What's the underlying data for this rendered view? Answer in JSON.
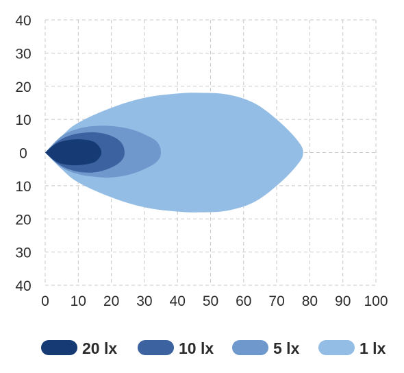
{
  "chart_data": {
    "type": "area",
    "title": "",
    "xlabel": "",
    "ylabel": "",
    "xlim": [
      0,
      100
    ],
    "ylim": [
      -40,
      40
    ],
    "x_ticks": [
      "0",
      "10",
      "20",
      "30",
      "40",
      "50",
      "60",
      "70",
      "80",
      "90",
      "100"
    ],
    "y_ticks": [
      "40",
      "30",
      "20",
      "10",
      "0",
      "10",
      "20",
      "30",
      "40"
    ],
    "y_tick_values": [
      40,
      30,
      20,
      10,
      0,
      -10,
      -20,
      -30,
      -40
    ],
    "grid": true,
    "legend_position": "bottom",
    "series": [
      {
        "name": "1 lx",
        "color": "#94bde6",
        "upper": [
          [
            0,
            0
          ],
          [
            5,
            5
          ],
          [
            10,
            9
          ],
          [
            20,
            13.5
          ],
          [
            30,
            16.5
          ],
          [
            40,
            17.8
          ],
          [
            47,
            18
          ],
          [
            55,
            17.5
          ],
          [
            63,
            15
          ],
          [
            70,
            10
          ],
          [
            76,
            4
          ],
          [
            78,
            0
          ]
        ],
        "lower": [
          [
            0,
            0
          ],
          [
            5,
            -5
          ],
          [
            10,
            -9
          ],
          [
            20,
            -13.5
          ],
          [
            30,
            -16.5
          ],
          [
            40,
            -17.8
          ],
          [
            47,
            -18
          ],
          [
            55,
            -17.5
          ],
          [
            63,
            -15
          ],
          [
            70,
            -10
          ],
          [
            76,
            -4
          ],
          [
            78,
            0
          ]
        ]
      },
      {
        "name": "5 lx",
        "color": "#6f98cd",
        "upper": [
          [
            0,
            0
          ],
          [
            5,
            5
          ],
          [
            10,
            7.2
          ],
          [
            15,
            8
          ],
          [
            20,
            8
          ],
          [
            26,
            7
          ],
          [
            31,
            5
          ],
          [
            34,
            3
          ],
          [
            35,
            0
          ]
        ],
        "lower": [
          [
            0,
            0
          ],
          [
            5,
            -4.5
          ],
          [
            10,
            -6.5
          ],
          [
            15,
            -7.3
          ],
          [
            20,
            -7.5
          ],
          [
            26,
            -6.5
          ],
          [
            31,
            -4.5
          ],
          [
            34,
            -2.5
          ],
          [
            35,
            0
          ]
        ]
      },
      {
        "name": "10 lx",
        "color": "#3c63a0",
        "upper": [
          [
            0,
            0
          ],
          [
            4,
            3.5
          ],
          [
            8,
            5.3
          ],
          [
            12,
            6
          ],
          [
            16,
            6
          ],
          [
            20,
            5
          ],
          [
            23,
            3
          ],
          [
            24,
            0
          ]
        ],
        "lower": [
          [
            0,
            0
          ],
          [
            4,
            -3.5
          ],
          [
            8,
            -5.3
          ],
          [
            12,
            -6
          ],
          [
            16,
            -5.8
          ],
          [
            20,
            -4.5
          ],
          [
            23,
            -2.5
          ],
          [
            24,
            0
          ]
        ]
      },
      {
        "name": "20 lx",
        "color": "#163a73",
        "upper": [
          [
            0,
            0
          ],
          [
            3,
            2.5
          ],
          [
            6,
            3.6
          ],
          [
            10,
            4
          ],
          [
            14,
            3.5
          ],
          [
            16,
            2.2
          ],
          [
            17,
            0
          ]
        ],
        "lower": [
          [
            0,
            0
          ],
          [
            3,
            -2.5
          ],
          [
            6,
            -3.6
          ],
          [
            10,
            -3.8
          ],
          [
            14,
            -3.2
          ],
          [
            16,
            -2
          ],
          [
            17,
            0
          ]
        ]
      }
    ]
  }
}
